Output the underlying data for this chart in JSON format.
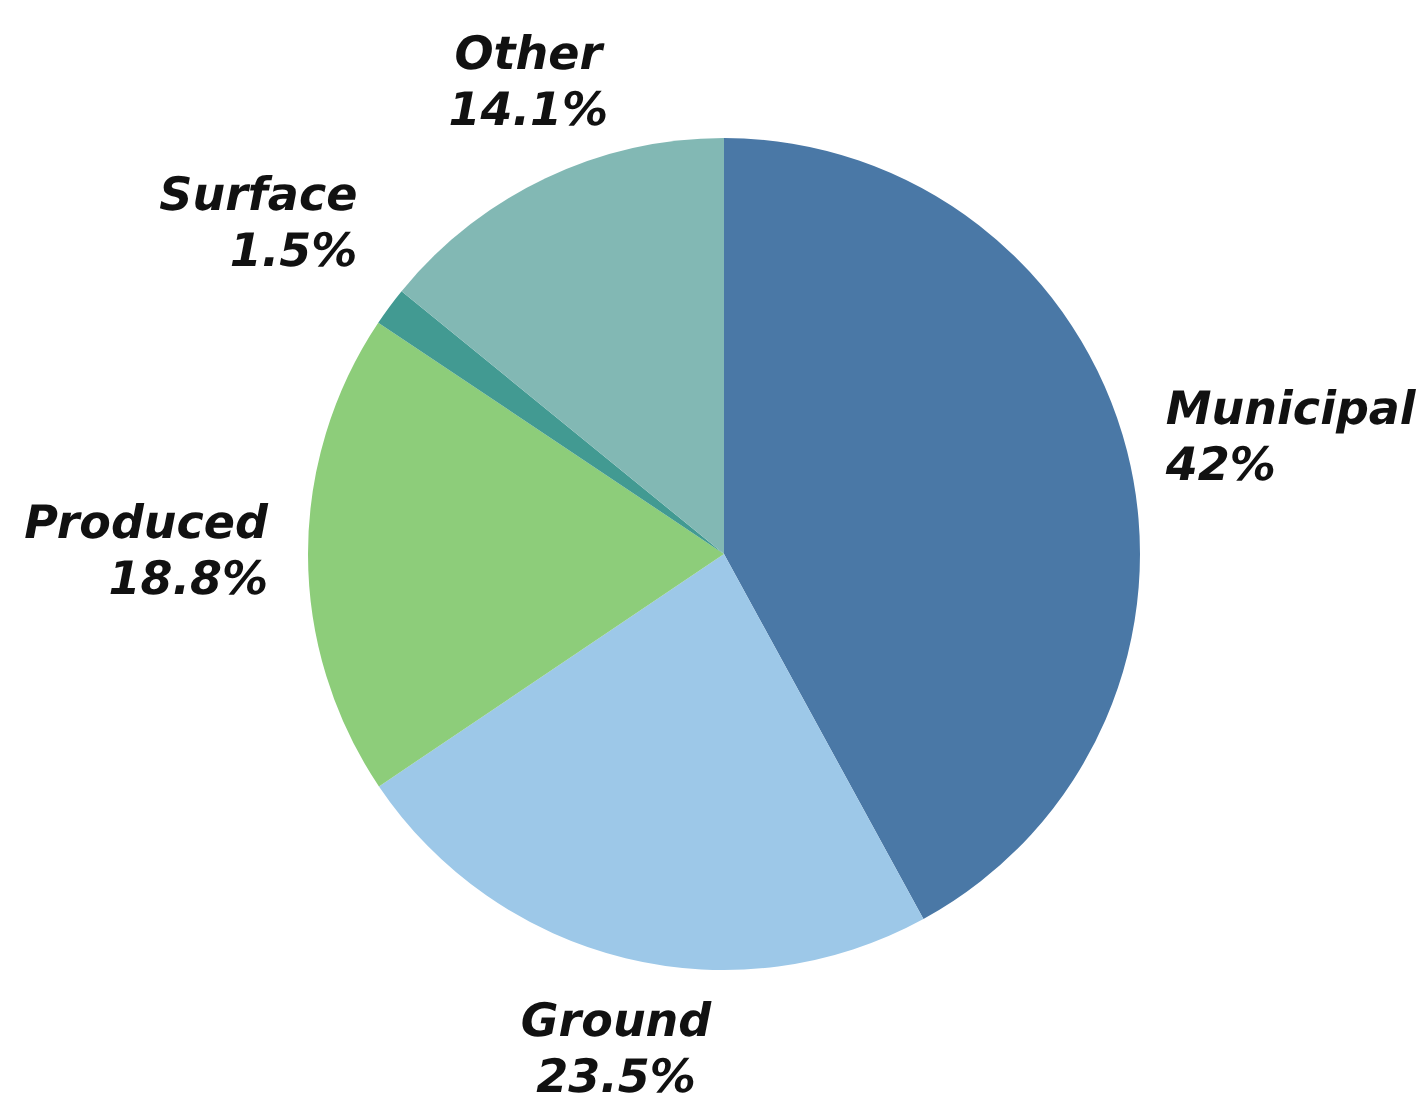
{
  "chart_data": {
    "type": "pie",
    "categories": [
      "Municipal",
      "Ground",
      "Produced",
      "Surface",
      "Other"
    ],
    "values": [
      42,
      23.5,
      18.8,
      1.5,
      14.1
    ],
    "colors": [
      "#4a78a6",
      "#9dc8e8",
      "#8dcd7a",
      "#429a92",
      "#82b8b4"
    ],
    "value_labels": [
      "42%",
      "23.5%",
      "18.8%",
      "1.5%",
      "14.1%"
    ],
    "legend": false
  }
}
